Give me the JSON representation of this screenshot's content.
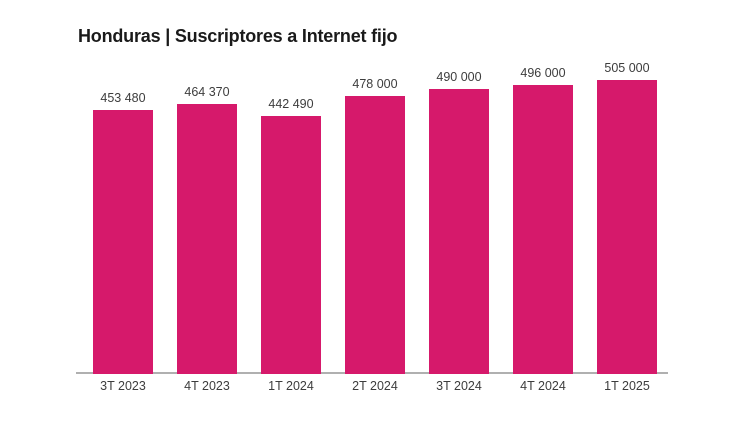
{
  "title": "Honduras | Suscriptores a Internet fijo",
  "colors": {
    "bar": "#d6196b",
    "title_text": "#1a1a1a",
    "value_label": "#3d3d3d",
    "axis_label": "#3d3d3d",
    "axis_line": "#b0b0b0",
    "background": "#ffffff"
  },
  "chart_data": {
    "type": "bar",
    "title": "Honduras | Suscriptores a Internet fijo",
    "categories": [
      "3T 2023",
      "4T 2023",
      "1T 2024",
      "2T 2024",
      "3T 2024",
      "4T 2024",
      "1T 2025"
    ],
    "values": [
      453480,
      464370,
      442490,
      478000,
      490000,
      496000,
      505000
    ],
    "value_labels": [
      "453 480",
      "464 370",
      "442 490",
      "478 000",
      "490 000",
      "496 000",
      "505 000"
    ],
    "xlabel": "",
    "ylabel": "",
    "ylim": [
      0,
      505000
    ],
    "grid": false,
    "legend": false,
    "bar_color": "#d6196b"
  }
}
